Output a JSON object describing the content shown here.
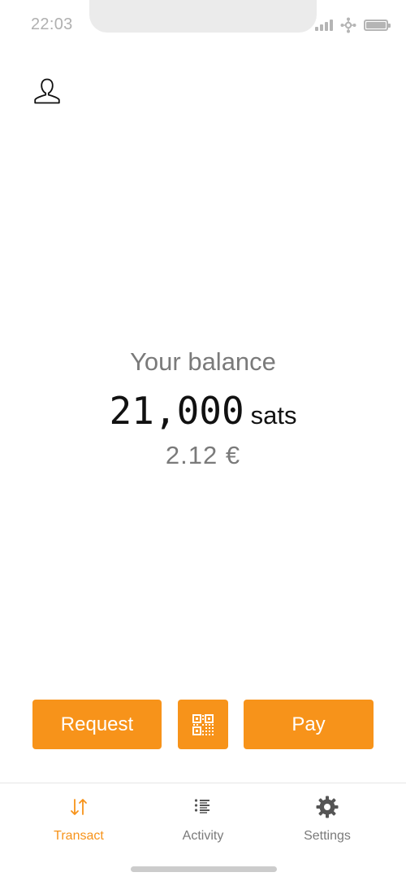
{
  "status_bar": {
    "time": "22:03",
    "icons": [
      "signal-icon",
      "connection-icon",
      "battery-icon"
    ]
  },
  "header": {
    "avatar_icon": "user-icon"
  },
  "balance": {
    "label": "Your balance",
    "amount": "21,000",
    "unit": "sats",
    "fiat": "2.12 €"
  },
  "actions": {
    "request_label": "Request",
    "scan_icon": "qr-code-icon",
    "pay_label": "Pay"
  },
  "nav": {
    "items": [
      {
        "label": "Transact",
        "icon": "transact-arrows-icon",
        "active": true
      },
      {
        "label": "Activity",
        "icon": "activity-list-icon",
        "active": false
      },
      {
        "label": "Settings",
        "icon": "gear-icon",
        "active": false
      }
    ]
  },
  "colors": {
    "accent": "#f7931a",
    "muted_text": "#7a7a7a",
    "primary_text": "#111111",
    "status_gray": "#b5b5b5"
  }
}
